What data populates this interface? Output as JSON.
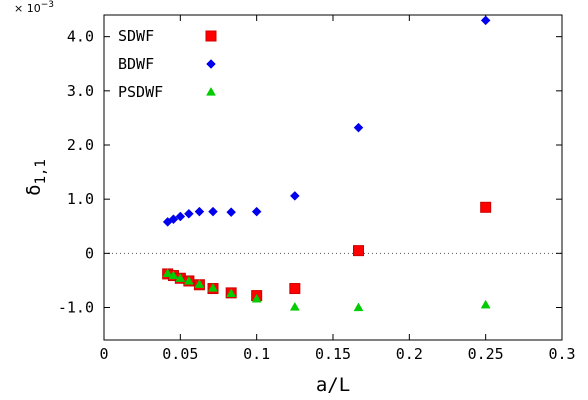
{
  "chart_data": {
    "type": "scatter",
    "title": "",
    "xlabel": "a/L",
    "ylabel": "δ₁,₁",
    "ylabel_main": "δ",
    "ylabel_sub": "1,1",
    "y_scale_note_base": "× 10",
    "y_scale_note_exp": "−3",
    "xlim": [
      0,
      0.3
    ],
    "ylim": [
      -1.6,
      4.4
    ],
    "x_ticks": [
      0,
      0.05,
      0.1,
      0.15,
      0.2,
      0.25,
      0.3
    ],
    "x_tick_labels": [
      "0",
      "0.05",
      "0.1",
      "0.15",
      "0.2",
      "0.25",
      "0.3"
    ],
    "y_ticks": [
      -1.0,
      0,
      1.0,
      2.0,
      3.0,
      4.0
    ],
    "y_tick_labels": [
      "-1.0",
      "0",
      "1.0",
      "2.0",
      "3.0",
      "4.0"
    ],
    "zero_line": true,
    "grid": false,
    "legend_position": "top-left",
    "series": [
      {
        "name": "SDWF",
        "marker": "square",
        "color": "#ff0000",
        "edge_color": "#cc0000",
        "points": [
          {
            "x": 0.0417,
            "y": -0.38
          },
          {
            "x": 0.0455,
            "y": -0.41
          },
          {
            "x": 0.05,
            "y": -0.46
          },
          {
            "x": 0.0556,
            "y": -0.51
          },
          {
            "x": 0.0625,
            "y": -0.58
          },
          {
            "x": 0.0714,
            "y": -0.65
          },
          {
            "x": 0.0833,
            "y": -0.73
          },
          {
            "x": 0.1,
            "y": -0.78
          },
          {
            "x": 0.125,
            "y": -0.65
          },
          {
            "x": 0.1667,
            "y": 0.05
          },
          {
            "x": 0.25,
            "y": 0.85
          }
        ]
      },
      {
        "name": "BDWF",
        "marker": "diamond",
        "color": "#0000ee",
        "edge_color": "#0000ee",
        "points": [
          {
            "x": 0.0417,
            "y": 0.58
          },
          {
            "x": 0.0455,
            "y": 0.63
          },
          {
            "x": 0.05,
            "y": 0.68
          },
          {
            "x": 0.0556,
            "y": 0.73
          },
          {
            "x": 0.0625,
            "y": 0.77
          },
          {
            "x": 0.0714,
            "y": 0.77
          },
          {
            "x": 0.0833,
            "y": 0.76
          },
          {
            "x": 0.1,
            "y": 0.77
          },
          {
            "x": 0.125,
            "y": 1.06
          },
          {
            "x": 0.1667,
            "y": 2.32
          },
          {
            "x": 0.25,
            "y": 4.3
          }
        ]
      },
      {
        "name": "PSDWF",
        "marker": "triangle",
        "color": "#00cc00",
        "edge_color": "#00cc00",
        "points": [
          {
            "x": 0.0417,
            "y": -0.37
          },
          {
            "x": 0.0455,
            "y": -0.41
          },
          {
            "x": 0.05,
            "y": -0.46
          },
          {
            "x": 0.0556,
            "y": -0.51
          },
          {
            "x": 0.0625,
            "y": -0.57
          },
          {
            "x": 0.0714,
            "y": -0.64
          },
          {
            "x": 0.0833,
            "y": -0.74
          },
          {
            "x": 0.1,
            "y": -0.84
          },
          {
            "x": 0.125,
            "y": -0.99
          },
          {
            "x": 0.1667,
            "y": -1.0
          },
          {
            "x": 0.25,
            "y": -0.95
          }
        ]
      }
    ]
  }
}
